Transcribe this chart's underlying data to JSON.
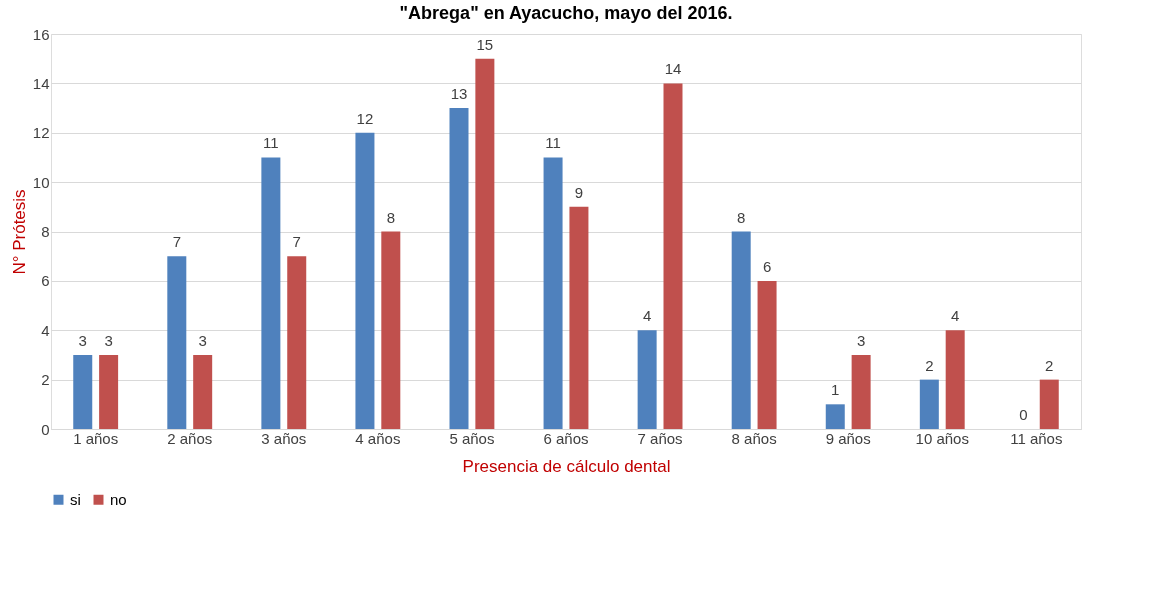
{
  "chart_data": {
    "type": "bar",
    "title": "\"Abrega\" en Ayacucho, mayo del 2016.",
    "xlabel": "Presencia de cálculo dental",
    "ylabel": "N° Prótesis",
    "categories": [
      "1 años",
      "2 años",
      "3 años",
      "4 años",
      "5 años",
      "6 años",
      "7 años",
      "8 años",
      "9 años",
      "10 años",
      "11 años"
    ],
    "series": [
      {
        "name": "si",
        "color": "#4f81bd",
        "values": [
          3,
          7,
          11,
          12,
          13,
          11,
          4,
          8,
          1,
          2,
          0
        ]
      },
      {
        "name": "no",
        "color": "#c0504d",
        "values": [
          3,
          3,
          7,
          8,
          15,
          9,
          14,
          6,
          3,
          4,
          2
        ]
      }
    ],
    "ylim": [
      0,
      16
    ],
    "yticks": [
      0,
      2,
      4,
      6,
      8,
      10,
      12,
      14,
      16
    ],
    "grid": "y",
    "legend": "bottom",
    "data_labels": true
  }
}
